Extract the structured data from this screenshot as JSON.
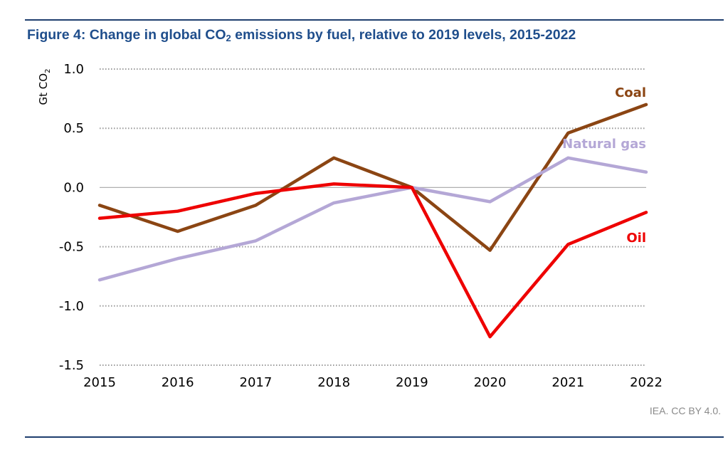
{
  "title": {
    "prefix": "Figure 4: Change in global CO",
    "sub": "2",
    "suffix": " emissions by fuel, relative to 2019 levels, 2015-2022"
  },
  "credit": "IEA. CC BY 4.0.",
  "colors": {
    "title": "#1f4e8c",
    "rule": "#1f3f6e",
    "credit": "#8a8a8a",
    "axis_text": "#000000",
    "grid": "#9a9a9a"
  },
  "chart_data": {
    "type": "line",
    "ylabel": {
      "main": "Gt CO",
      "sub": "2"
    },
    "xlabel": "",
    "ylim": [
      -1.5,
      1.0
    ],
    "yticks": [
      1.0,
      0.5,
      0.0,
      -0.5,
      -1.0,
      -1.5
    ],
    "ytick_labels": [
      "1.0",
      "0.5",
      "0.0",
      "-0.5",
      "-1.0",
      "-1.5"
    ],
    "x": [
      "2015",
      "2016",
      "2017",
      "2018",
      "2019",
      "2020",
      "2021",
      "2022"
    ],
    "grid": "dotted horizontal",
    "legend": "inline labels at right",
    "series": [
      {
        "name": "Coal",
        "color": "#8b4513",
        "values": [
          -0.15,
          -0.37,
          -0.15,
          0.25,
          0.0,
          -0.53,
          0.46,
          0.7
        ]
      },
      {
        "name": "Natural gas",
        "color": "#b4a7d6",
        "values": [
          -0.78,
          -0.6,
          -0.45,
          -0.13,
          0.0,
          -0.12,
          0.25,
          0.13
        ]
      },
      {
        "name": "Oil",
        "color": "#ee0000",
        "values": [
          -0.26,
          -0.2,
          -0.05,
          0.03,
          0.0,
          -1.26,
          -0.48,
          -0.21
        ]
      }
    ]
  }
}
